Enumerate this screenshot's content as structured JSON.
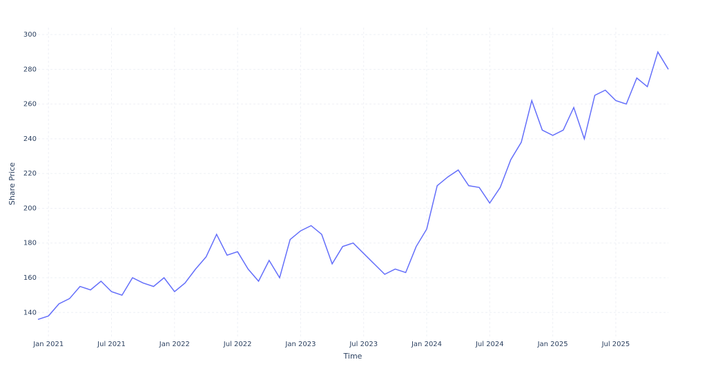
{
  "chart_data": {
    "type": "line",
    "x_label": "Time",
    "y_label": "Share Price",
    "x": [
      "2020-12",
      "2021-01",
      "2021-02",
      "2021-03",
      "2021-04",
      "2021-05",
      "2021-06",
      "2021-07",
      "2021-08",
      "2021-09",
      "2021-10",
      "2021-11",
      "2021-12",
      "2022-01",
      "2022-02",
      "2022-03",
      "2022-04",
      "2022-05",
      "2022-06",
      "2022-07",
      "2022-08",
      "2022-09",
      "2022-10",
      "2022-11",
      "2022-12",
      "2023-01",
      "2023-02",
      "2023-03",
      "2023-04",
      "2023-05",
      "2023-06",
      "2023-07",
      "2023-08",
      "2023-09",
      "2023-10",
      "2023-11",
      "2023-12",
      "2024-01",
      "2024-02",
      "2024-03",
      "2024-04",
      "2024-05",
      "2024-06",
      "2024-07",
      "2024-08",
      "2024-09",
      "2024-10",
      "2024-11",
      "2024-12",
      "2025-01",
      "2025-02",
      "2025-03",
      "2025-04",
      "2025-05",
      "2025-06",
      "2025-07",
      "2025-08",
      "2025-09",
      "2025-10",
      "2025-11",
      "2025-12"
    ],
    "values": [
      136,
      138,
      145,
      148,
      155,
      153,
      158,
      152,
      150,
      160,
      157,
      155,
      160,
      152,
      157,
      165,
      172,
      185,
      173,
      175,
      165,
      158,
      170,
      160,
      182,
      187,
      190,
      185,
      168,
      178,
      180,
      174,
      168,
      162,
      165,
      163,
      178,
      188,
      213,
      218,
      222,
      213,
      212,
      203,
      212,
      228,
      238,
      262,
      245,
      242,
      245,
      258,
      240,
      265,
      268,
      262,
      260,
      275,
      270,
      290,
      280
    ],
    "color": "#636efa",
    "xlim": [
      "2020-12",
      "2025-12"
    ],
    "xticks": [
      {
        "value": "2021-01",
        "label": "Jan 2021"
      },
      {
        "value": "2021-07",
        "label": "Jul 2021"
      },
      {
        "value": "2022-01",
        "label": "Jan 2022"
      },
      {
        "value": "2022-07",
        "label": "Jul 2022"
      },
      {
        "value": "2023-01",
        "label": "Jan 2023"
      },
      {
        "value": "2023-07",
        "label": "Jul 2023"
      },
      {
        "value": "2024-01",
        "label": "Jan 2024"
      },
      {
        "value": "2024-07",
        "label": "Jul 2024"
      },
      {
        "value": "2025-01",
        "label": "Jan 2025"
      },
      {
        "value": "2025-07",
        "label": "Jul 2025"
      }
    ],
    "ylim": [
      125,
      304
    ],
    "yticks": [
      140,
      160,
      180,
      200,
      220,
      240,
      260,
      280,
      300
    ],
    "grid": true
  }
}
